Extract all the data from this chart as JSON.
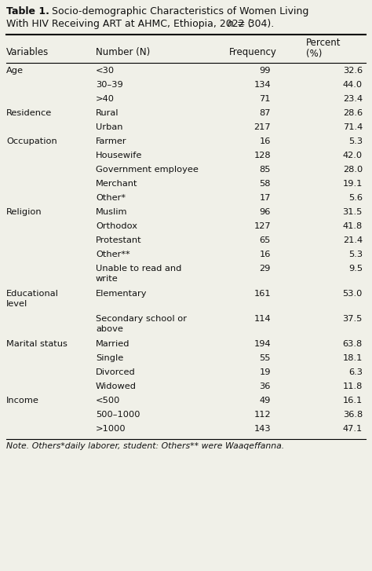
{
  "bg_color": "#f0f0e8",
  "text_color": "#111111",
  "font_family": "DejaVu Sans",
  "fs_title": 9.0,
  "fs_header": 8.5,
  "fs_body": 8.2,
  "fs_note": 7.8,
  "rows_data": [
    [
      "Age",
      "<30",
      "99",
      "32.6",
      1
    ],
    [
      "",
      "30–39",
      "134",
      "44.0",
      1
    ],
    [
      "",
      ">40",
      "71",
      "23.4",
      1
    ],
    [
      "Residence",
      "Rural",
      "87",
      "28.6",
      1
    ],
    [
      "",
      "Urban",
      "217",
      "71.4",
      1
    ],
    [
      "Occupation",
      "Farmer",
      "16",
      "5.3",
      1
    ],
    [
      "",
      "Housewife",
      "128",
      "42.0",
      1
    ],
    [
      "",
      "Government employee",
      "85",
      "28.0",
      1
    ],
    [
      "",
      "Merchant",
      "58",
      "19.1",
      1
    ],
    [
      "",
      "Other*",
      "17",
      "5.6",
      1
    ],
    [
      "Religion",
      "Muslim",
      "96",
      "31.5",
      1
    ],
    [
      "",
      "Orthodox",
      "127",
      "41.8",
      1
    ],
    [
      "",
      "Protestant",
      "65",
      "21.4",
      1
    ],
    [
      "",
      "Other**",
      "16",
      "5.3",
      1
    ],
    [
      "",
      "Unable to read and\nwrite",
      "29",
      "9.5",
      2
    ],
    [
      "Educational\nlevel",
      "Elementary",
      "161",
      "53.0",
      2
    ],
    [
      "",
      "Secondary school or\nabove",
      "114",
      "37.5",
      2
    ],
    [
      "Marital status",
      "Married",
      "194",
      "63.8",
      1
    ],
    [
      "",
      "Single",
      "55",
      "18.1",
      1
    ],
    [
      "",
      "Divorced",
      "19",
      "6.3",
      1
    ],
    [
      "",
      "Widowed",
      "36",
      "11.8",
      1
    ],
    [
      "Income",
      "<500",
      "49",
      "16.1",
      1
    ],
    [
      "",
      "500–1000",
      "112",
      "36.8",
      1
    ],
    [
      "",
      ">1000",
      "143",
      "47.1",
      1
    ]
  ],
  "note": "Note. Others*daily laborer, student: Others** were Waaqeffanna."
}
